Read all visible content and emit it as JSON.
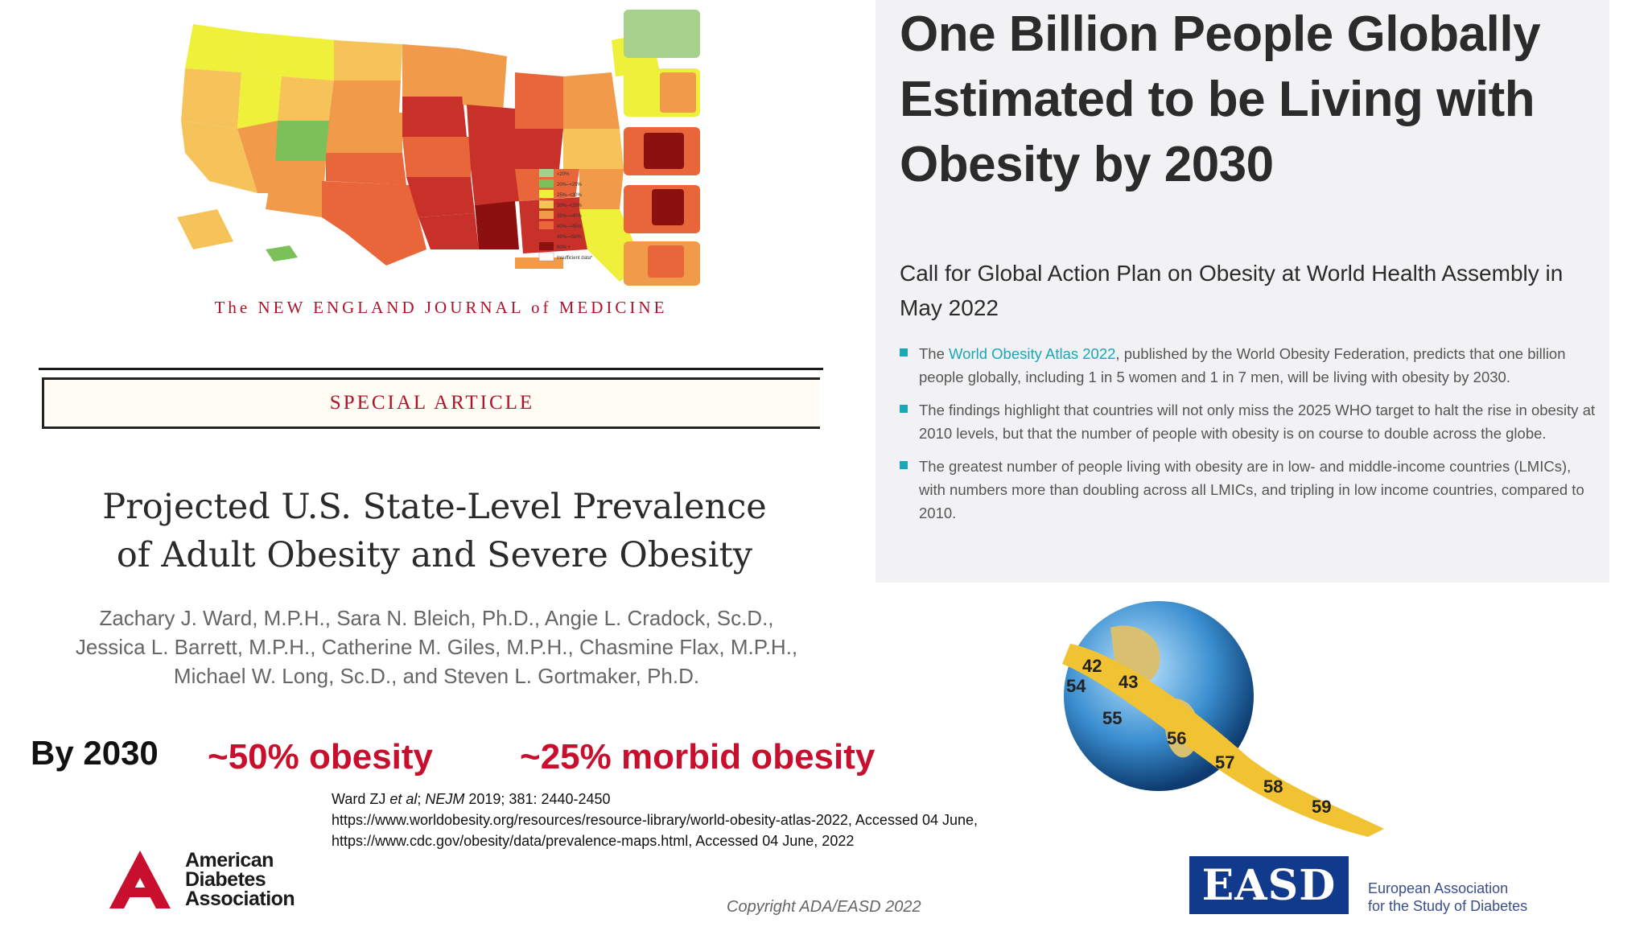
{
  "nejm": {
    "masthead": "The NEW ENGLAND JOURNAL of MEDICINE",
    "section": "SPECIAL ARTICLE",
    "title_line1": "Projected U.S. State-Level Prevalence",
    "title_line2": "of Adult Obesity and Severe Obesity",
    "authors_line1": "Zachary J. Ward, M.P.H., Sara N. Bleich, Ph.D., Angie L. Cradock, Sc.D.,",
    "authors_line2": "Jessica L. Barrett, M.P.H., Catherine M. Giles, M.P.H., Chasmine Flax, M.P.H.,",
    "authors_line3": "Michael W. Long, Sc.D., and Steven L. Gortmaker, Ph.D."
  },
  "map_legend": {
    "items": [
      "<20%",
      "20%–<25%",
      "25%–<30%",
      "30%–<35%",
      "35%–<40%",
      "40%–<45%",
      "45%–<50%",
      "50% +",
      "Insufficient data*"
    ],
    "colors": [
      "#a8d08d",
      "#7cc05a",
      "#eef03a",
      "#f5c35a",
      "#f09a4a",
      "#e8663a",
      "#c8302a",
      "#8c1010",
      "#ffffff"
    ]
  },
  "stats": {
    "by": "By 2030",
    "obesity": "~50% obesity",
    "morbid": "~25% morbid obesity"
  },
  "references": {
    "ref1_author": "Ward ZJ ",
    "ref1_etal": "et al",
    "ref1_sep": "; ",
    "ref1_journal": "NEJM",
    "ref1_rest": " 2019; 381: 2440-2450",
    "ref2": "https://www.worldobesity.org/resources/resource-library/world-obesity-atlas-2022, Accessed 04 June,",
    "ref3": "https://www.cdc.gov/obesity/data/prevalence-maps.html, Accessed 04 June, 2022"
  },
  "right_panel": {
    "title": "One Billion People Globally Estimated to be Living with Obesity by 2030",
    "subtitle": "Call for Global Action Plan on Obesity at World Health Assembly in May 2022",
    "bullet1_pre": "The ",
    "bullet1_link": "World Obesity Atlas 2022",
    "bullet1_post": ", published by the World Obesity Federation, predicts that one billion people globally, including 1 in 5 women and 1 in 7 men, will be living with obesity by 2030.",
    "bullet2": "The findings highlight that countries will not only miss the 2025 WHO target to halt the rise in obesity at 2010 levels, but that the number of people with obesity is on course to double across the globe.",
    "bullet3": "The greatest number of people living with obesity are in low- and middle-income countries (LMICs), with numbers more than doubling across all LMICs, and tripling in low income countries, compared to 2010.",
    "accent": "#1aa7b8"
  },
  "tape_numbers": [
    "54",
    "55",
    "56",
    "57",
    "58",
    "59",
    "42",
    "43"
  ],
  "logos": {
    "ada_line1": "American",
    "ada_line2": "Diabetes",
    "ada_line3": "Association",
    "easd_abbr": "EASD",
    "easd_line1": "European Association",
    "easd_line2": "for the Study of Diabetes"
  },
  "copyright": "Copyright ADA/EASD 2022"
}
